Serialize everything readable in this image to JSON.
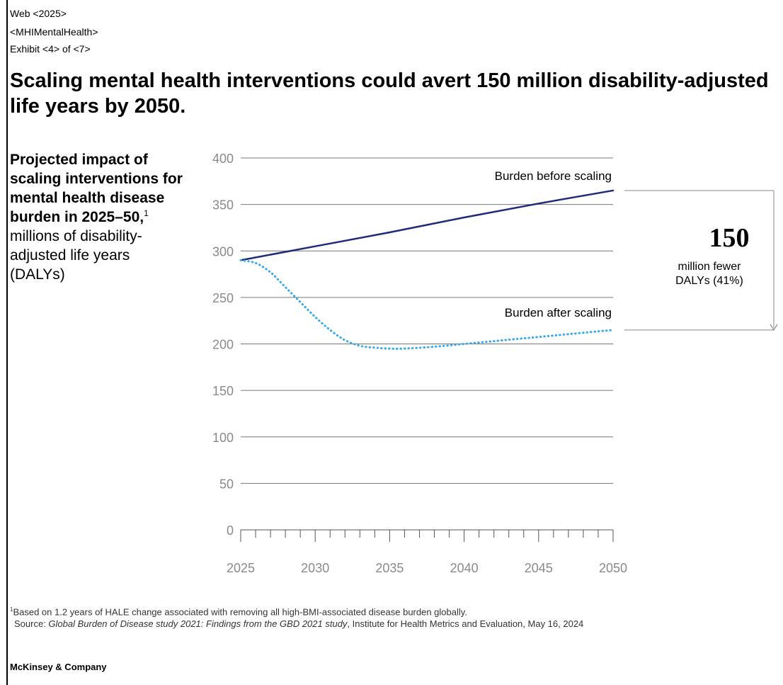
{
  "header": {
    "line1": "Web <2025>",
    "line2": "<MHIMentalHealth>",
    "line3": "Exhibit <4> of <7>"
  },
  "title": "Scaling mental health interventions could avert 150 million disability-adjusted life years by 2050.",
  "subtitle": {
    "bold": "Projected impact of scaling interventions for mental health disease burden in 2025–50,",
    "sup": "1",
    "rest": " millions of disability-adjusted life years (DALYs)"
  },
  "callout": {
    "value": "150",
    "line1": "million fewer",
    "line2": "DALYs (41%)"
  },
  "footnote": {
    "sup": "1",
    "text": "Based on 1.2 years of HALE change associated with removing all high-BMI-associated disease burden globally."
  },
  "source": {
    "prefix": "Source: ",
    "italic": "Global Burden of Disease study 2021: Findings from the GBD 2021 study",
    "rest": ", Institute for Health Metrics and Evaluation, May 16, 2024"
  },
  "brand": "McKinsey & Company",
  "chart_data": {
    "type": "line",
    "xlim": [
      2025,
      2050
    ],
    "ylim": [
      0,
      400
    ],
    "yticks": [
      0,
      50,
      100,
      150,
      200,
      250,
      300,
      350,
      400
    ],
    "xticks": [
      2025,
      2030,
      2035,
      2040,
      2045,
      2050
    ],
    "grid": true,
    "series": [
      {
        "name": "Burden before scaling",
        "color": "#1f2a7a",
        "style": "solid",
        "x": [
          2025,
          2030,
          2035,
          2040,
          2045,
          2050
        ],
        "values": [
          290,
          305,
          320,
          336,
          351,
          365
        ]
      },
      {
        "name": "Burden after scaling",
        "color": "#36a9f0",
        "style": "dotted",
        "x": [
          2025,
          2026,
          2027,
          2028,
          2029,
          2030,
          2031,
          2032,
          2033,
          2034,
          2035,
          2036,
          2038,
          2040,
          2042,
          2044,
          2046,
          2048,
          2050
        ],
        "values": [
          290,
          287,
          277,
          261,
          245,
          229,
          215,
          204,
          198,
          196,
          195,
          195,
          197,
          200,
          203,
          206,
          209,
          212,
          215
        ]
      }
    ]
  }
}
